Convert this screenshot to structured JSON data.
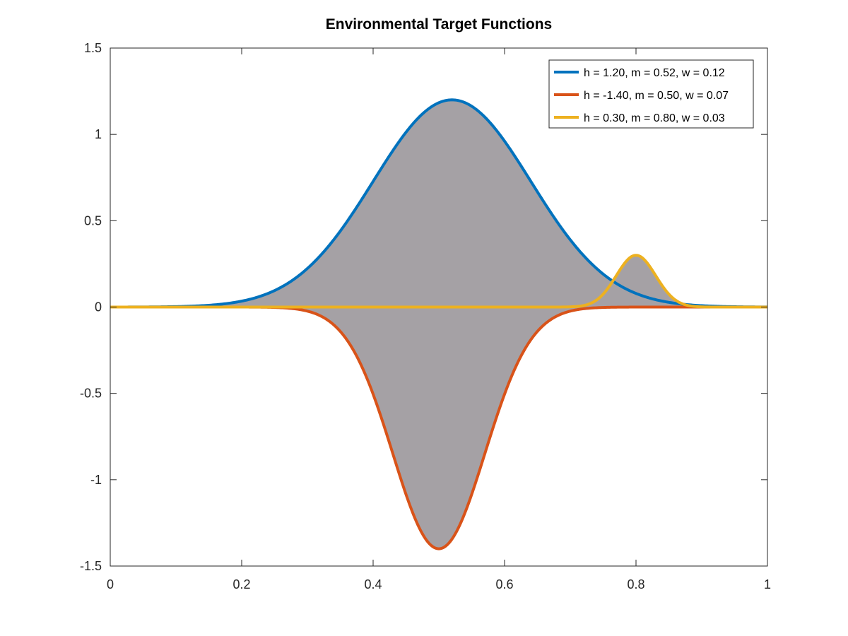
{
  "chart_data": {
    "type": "line",
    "title": "Environmental Target Functions",
    "xlabel": "",
    "ylabel": "",
    "xlim": [
      0,
      1
    ],
    "ylim": [
      -1.5,
      1.5
    ],
    "x_ticks": [
      0,
      0.2,
      0.4,
      0.6,
      0.8,
      1
    ],
    "x_tick_labels": [
      "0",
      "0.2",
      "0.4",
      "0.6",
      "0.8",
      "1"
    ],
    "y_ticks": [
      -1.5,
      -1,
      -0.5,
      0,
      0.5,
      1,
      1.5
    ],
    "y_tick_labels": [
      "-1.5",
      "-1",
      "-0.5",
      "0",
      "0.5",
      "1",
      "1.5"
    ],
    "grid": false,
    "legend_position": "top-right",
    "fill_color": "#a5a1a5",
    "series": [
      {
        "name": "h = 1.20, m = 0.52, w = 0.12",
        "h": 1.2,
        "m": 0.52,
        "w": 0.12,
        "color": "#0072bd",
        "filled": true
      },
      {
        "name": "h = -1.40, m = 0.50, w = 0.07",
        "h": -1.4,
        "m": 0.5,
        "w": 0.07,
        "color": "#d95319",
        "filled": true
      },
      {
        "name": "h = 0.30, m = 0.80, w = 0.03",
        "h": 0.3,
        "m": 0.8,
        "w": 0.03,
        "color": "#edb120",
        "filled": true
      }
    ]
  }
}
